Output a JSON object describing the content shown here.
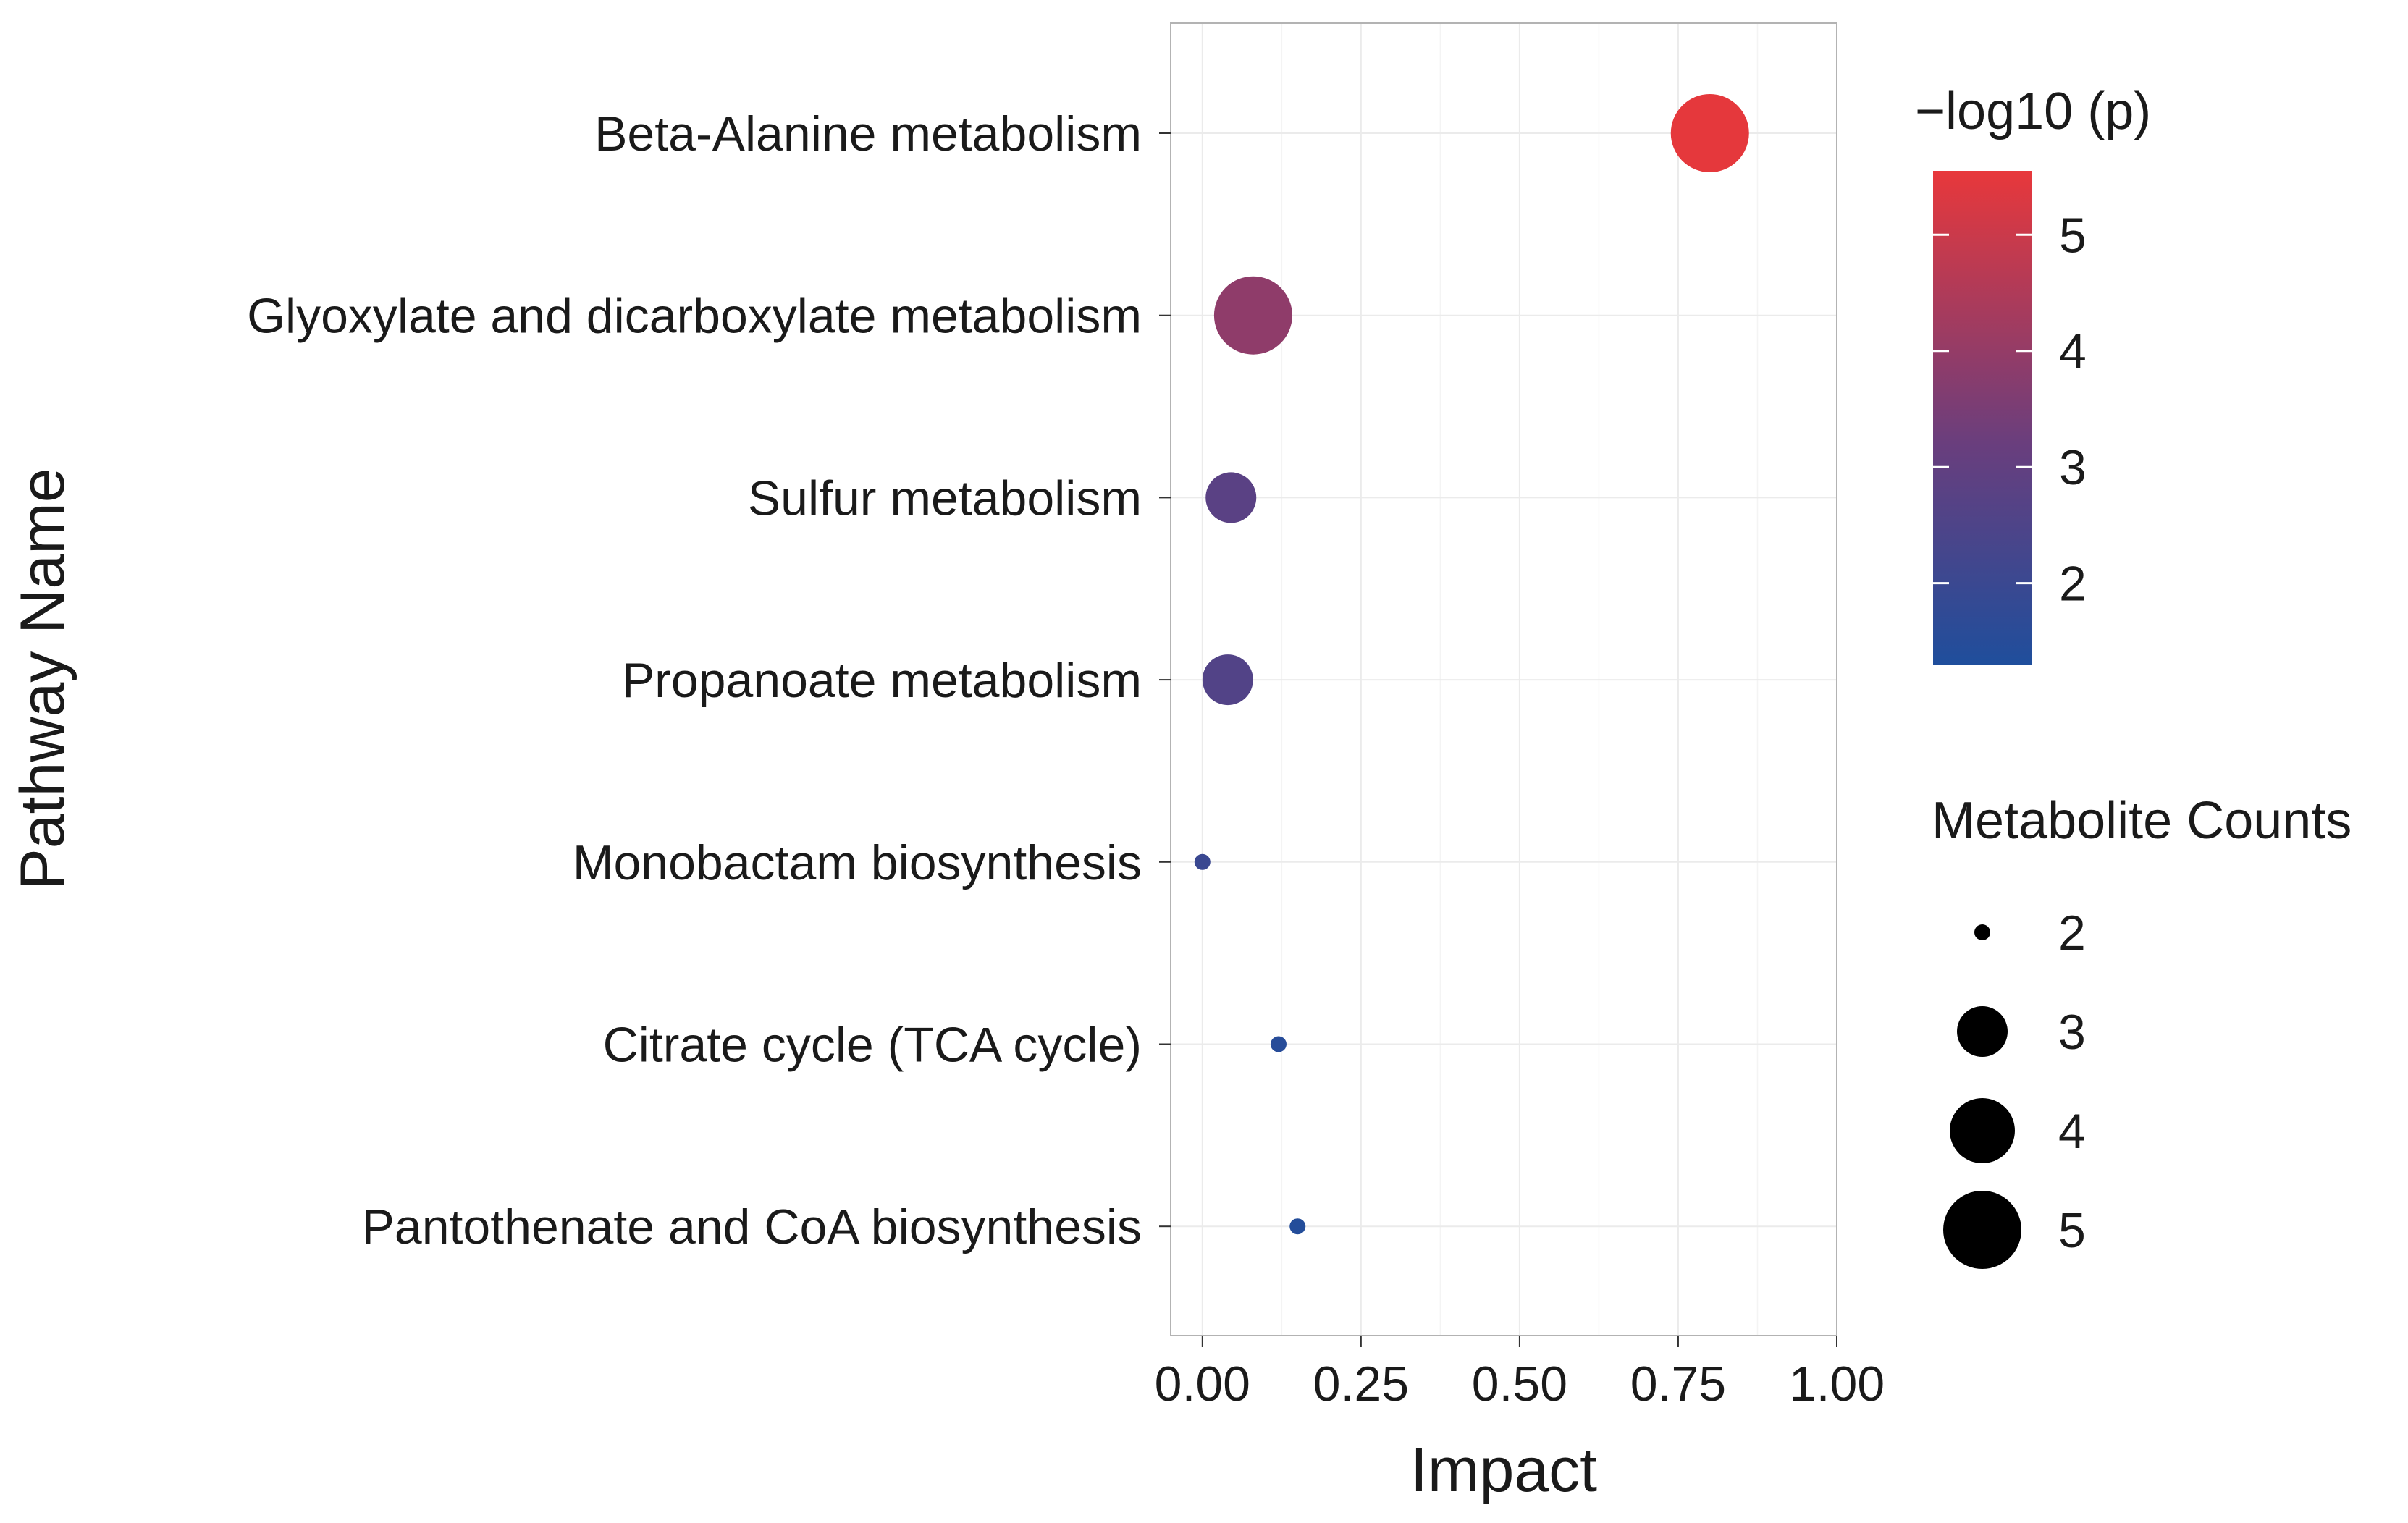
{
  "chart_data": {
    "type": "scatter",
    "title": "",
    "xlabel": "Impact",
    "ylabel": "Pathway Name",
    "xlim": [
      -0.05,
      1.0
    ],
    "x_ticks": [
      0.0,
      0.25,
      0.5,
      0.75,
      1.0
    ],
    "x_tick_labels": [
      "0.00",
      "0.25",
      "0.50",
      "0.75",
      "1.00"
    ],
    "grid": true,
    "categories": [
      "Beta-Alanine metabolism",
      "Glyoxylate and dicarboxylate metabolism",
      "Sulfur metabolism",
      "Propanoate metabolism",
      "Monobactam biosynthesis",
      "Citrate cycle (TCA cycle)",
      "Pantothenate and CoA biosynthesis"
    ],
    "points": [
      {
        "pathway": "Beta-Alanine metabolism",
        "impact": 0.8,
        "neg_log10_p": 5.5,
        "count": 5
      },
      {
        "pathway": "Glyoxylate and dicarboxylate metabolism",
        "impact": 0.08,
        "neg_log10_p": 3.9,
        "count": 5
      },
      {
        "pathway": "Sulfur metabolism",
        "impact": 0.045,
        "neg_log10_p": 2.8,
        "count": 3
      },
      {
        "pathway": "Propanoate metabolism",
        "impact": 0.04,
        "neg_log10_p": 2.6,
        "count": 3
      },
      {
        "pathway": "Monobactam biosynthesis",
        "impact": 0.0,
        "neg_log10_p": 2.0,
        "count": 2
      },
      {
        "pathway": "Citrate cycle (TCA cycle)",
        "impact": 0.12,
        "neg_log10_p": 1.5,
        "count": 2
      },
      {
        "pathway": "Pantothenate and CoA biosynthesis",
        "impact": 0.15,
        "neg_log10_p": 1.4,
        "count": 2
      }
    ],
    "color_legend": {
      "title": "−log10 (p)",
      "min": 1.3,
      "max": 5.55,
      "ticks": [
        2,
        3,
        4,
        5
      ],
      "tick_labels": [
        "2",
        "3",
        "4",
        "5"
      ],
      "low_color": "#1f4e9c",
      "high_color": "#e8383b"
    },
    "size_legend": {
      "title": "Metabolite Counts",
      "values": [
        2,
        3,
        4,
        5
      ],
      "labels": [
        "2",
        "3",
        "4",
        "5"
      ]
    },
    "legend_position": "right"
  }
}
